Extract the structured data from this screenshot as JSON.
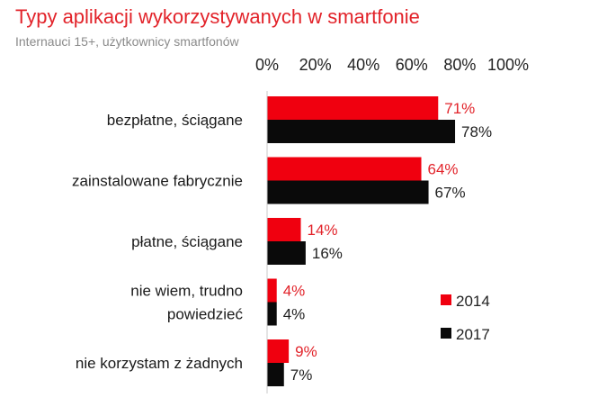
{
  "header": {
    "title": "Typy aplikacji wykorzystywanych w smartfonie",
    "subtitle": "Internauci 15+, użytkownicy smartfonów"
  },
  "chart_data": {
    "type": "bar",
    "orientation": "horizontal",
    "title": "Typy aplikacji wykorzystywanych w smartfonie",
    "subtitle": "Internauci 15+, użytkownicy smartfonów",
    "categories": [
      [
        "bezpłatne, ściągane"
      ],
      [
        "zainstalowane fabrycznie"
      ],
      [
        "płatne, ściągane"
      ],
      [
        "nie wiem, trudno",
        "powiedzieć"
      ],
      [
        "nie korzystam z żadnych"
      ]
    ],
    "series": [
      {
        "name": "2014",
        "color": "#f0000f",
        "label_color": "#e2232a",
        "values": [
          71,
          64,
          14,
          4,
          9
        ]
      },
      {
        "name": "2017",
        "color": "#0a0a0a",
        "label_color": "#222222",
        "values": [
          78,
          67,
          16,
          4,
          7
        ]
      }
    ],
    "xlim": [
      0,
      100
    ],
    "xticks": [
      "0%",
      "20%",
      "40%",
      "60%",
      "80%",
      "100%"
    ],
    "value_suffix": "%",
    "grid": false,
    "legend_position": "bottom-right"
  }
}
